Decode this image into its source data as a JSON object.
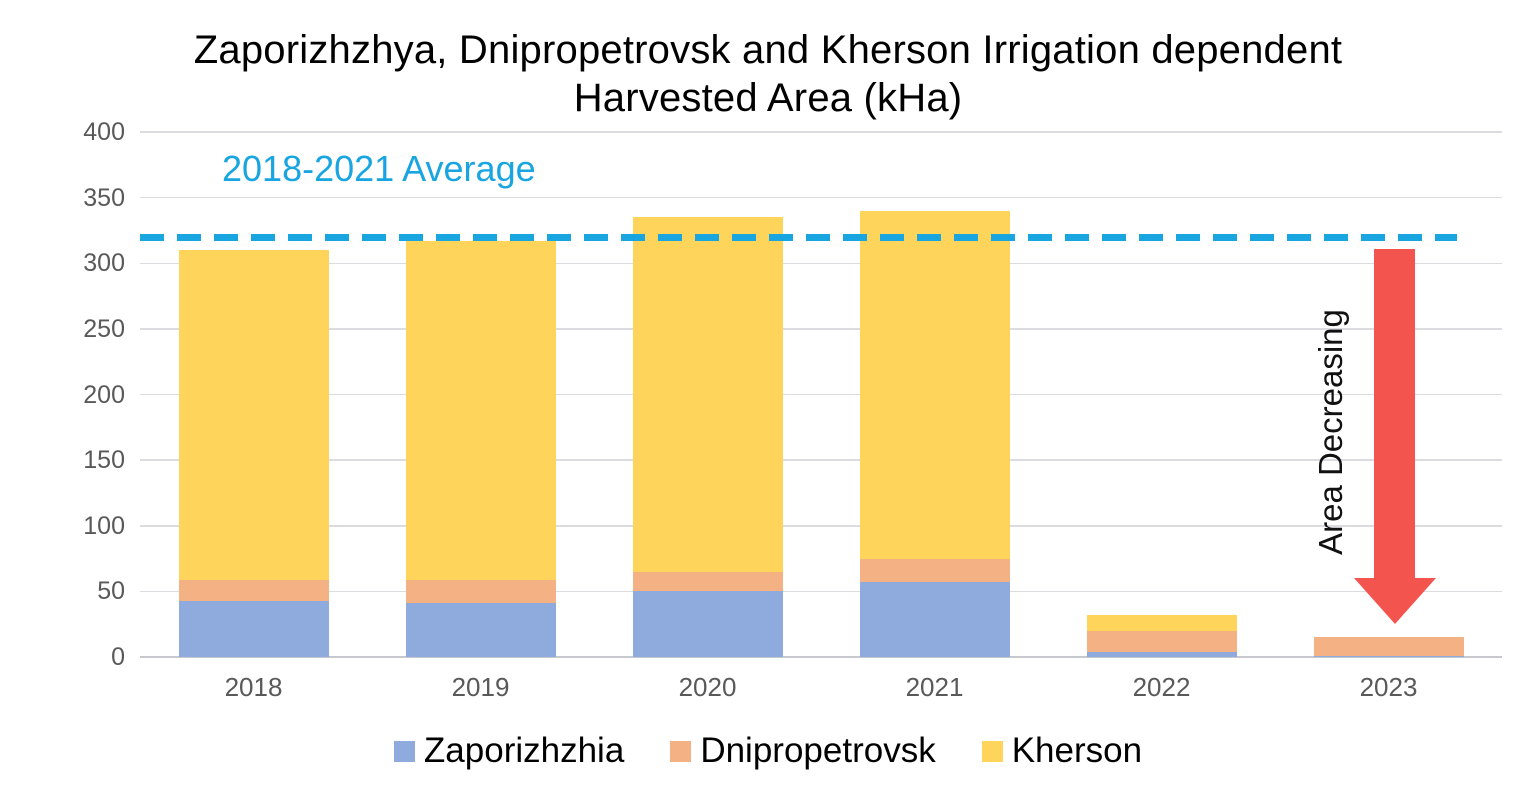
{
  "title": {
    "lines": [
      "Zaporizhzhya, Dnipropetrovsk and Kherson Irrigation dependent",
      "Harvested Area (kHa)"
    ]
  },
  "annotations": {
    "average_label": "2018-2021 Average",
    "area_decreasing_label": "Area Decreasing"
  },
  "colors": {
    "zaporizhzhia_blue": "#8FAADC",
    "dnipropetrovsk_orange": "#F4B183",
    "kherson_yellow": "#FFD45B",
    "average_cyan": "#18A5E0",
    "arrow_red": "#F4544E",
    "axis_text_grey": "#595959",
    "gridline_grey": "#DBDBE0"
  },
  "chart_data": {
    "type": "bar",
    "stacked": true,
    "title": "Zaporizhzhya, Dnipropetrovsk and Kherson Irrigation dependent Harvested Area (kHa)",
    "categories": [
      "2018",
      "2019",
      "2020",
      "2021",
      "2022",
      "2023"
    ],
    "series": [
      {
        "name": "Zaporizhzhia",
        "color": "#8FAADC",
        "values": [
          43,
          41,
          50,
          57,
          4,
          1
        ]
      },
      {
        "name": "Dnipropetrovsk",
        "color": "#F4B183",
        "values": [
          16,
          18,
          15,
          18,
          16,
          14
        ]
      },
      {
        "name": "Kherson",
        "color": "#FFD45B",
        "values": [
          251,
          258,
          270,
          265,
          12,
          0
        ]
      }
    ],
    "totals": [
      310,
      317,
      335,
      340,
      32,
      15
    ],
    "xlabel": "",
    "ylabel": "",
    "ylim": [
      0,
      400
    ],
    "yticks": [
      0,
      50,
      100,
      150,
      200,
      250,
      300,
      350,
      400
    ],
    "grid": true,
    "legend_position": "bottom",
    "average_line": {
      "label": "2018-2021 Average",
      "value": 320,
      "style": "dashed",
      "color": "#18A5E0"
    }
  }
}
